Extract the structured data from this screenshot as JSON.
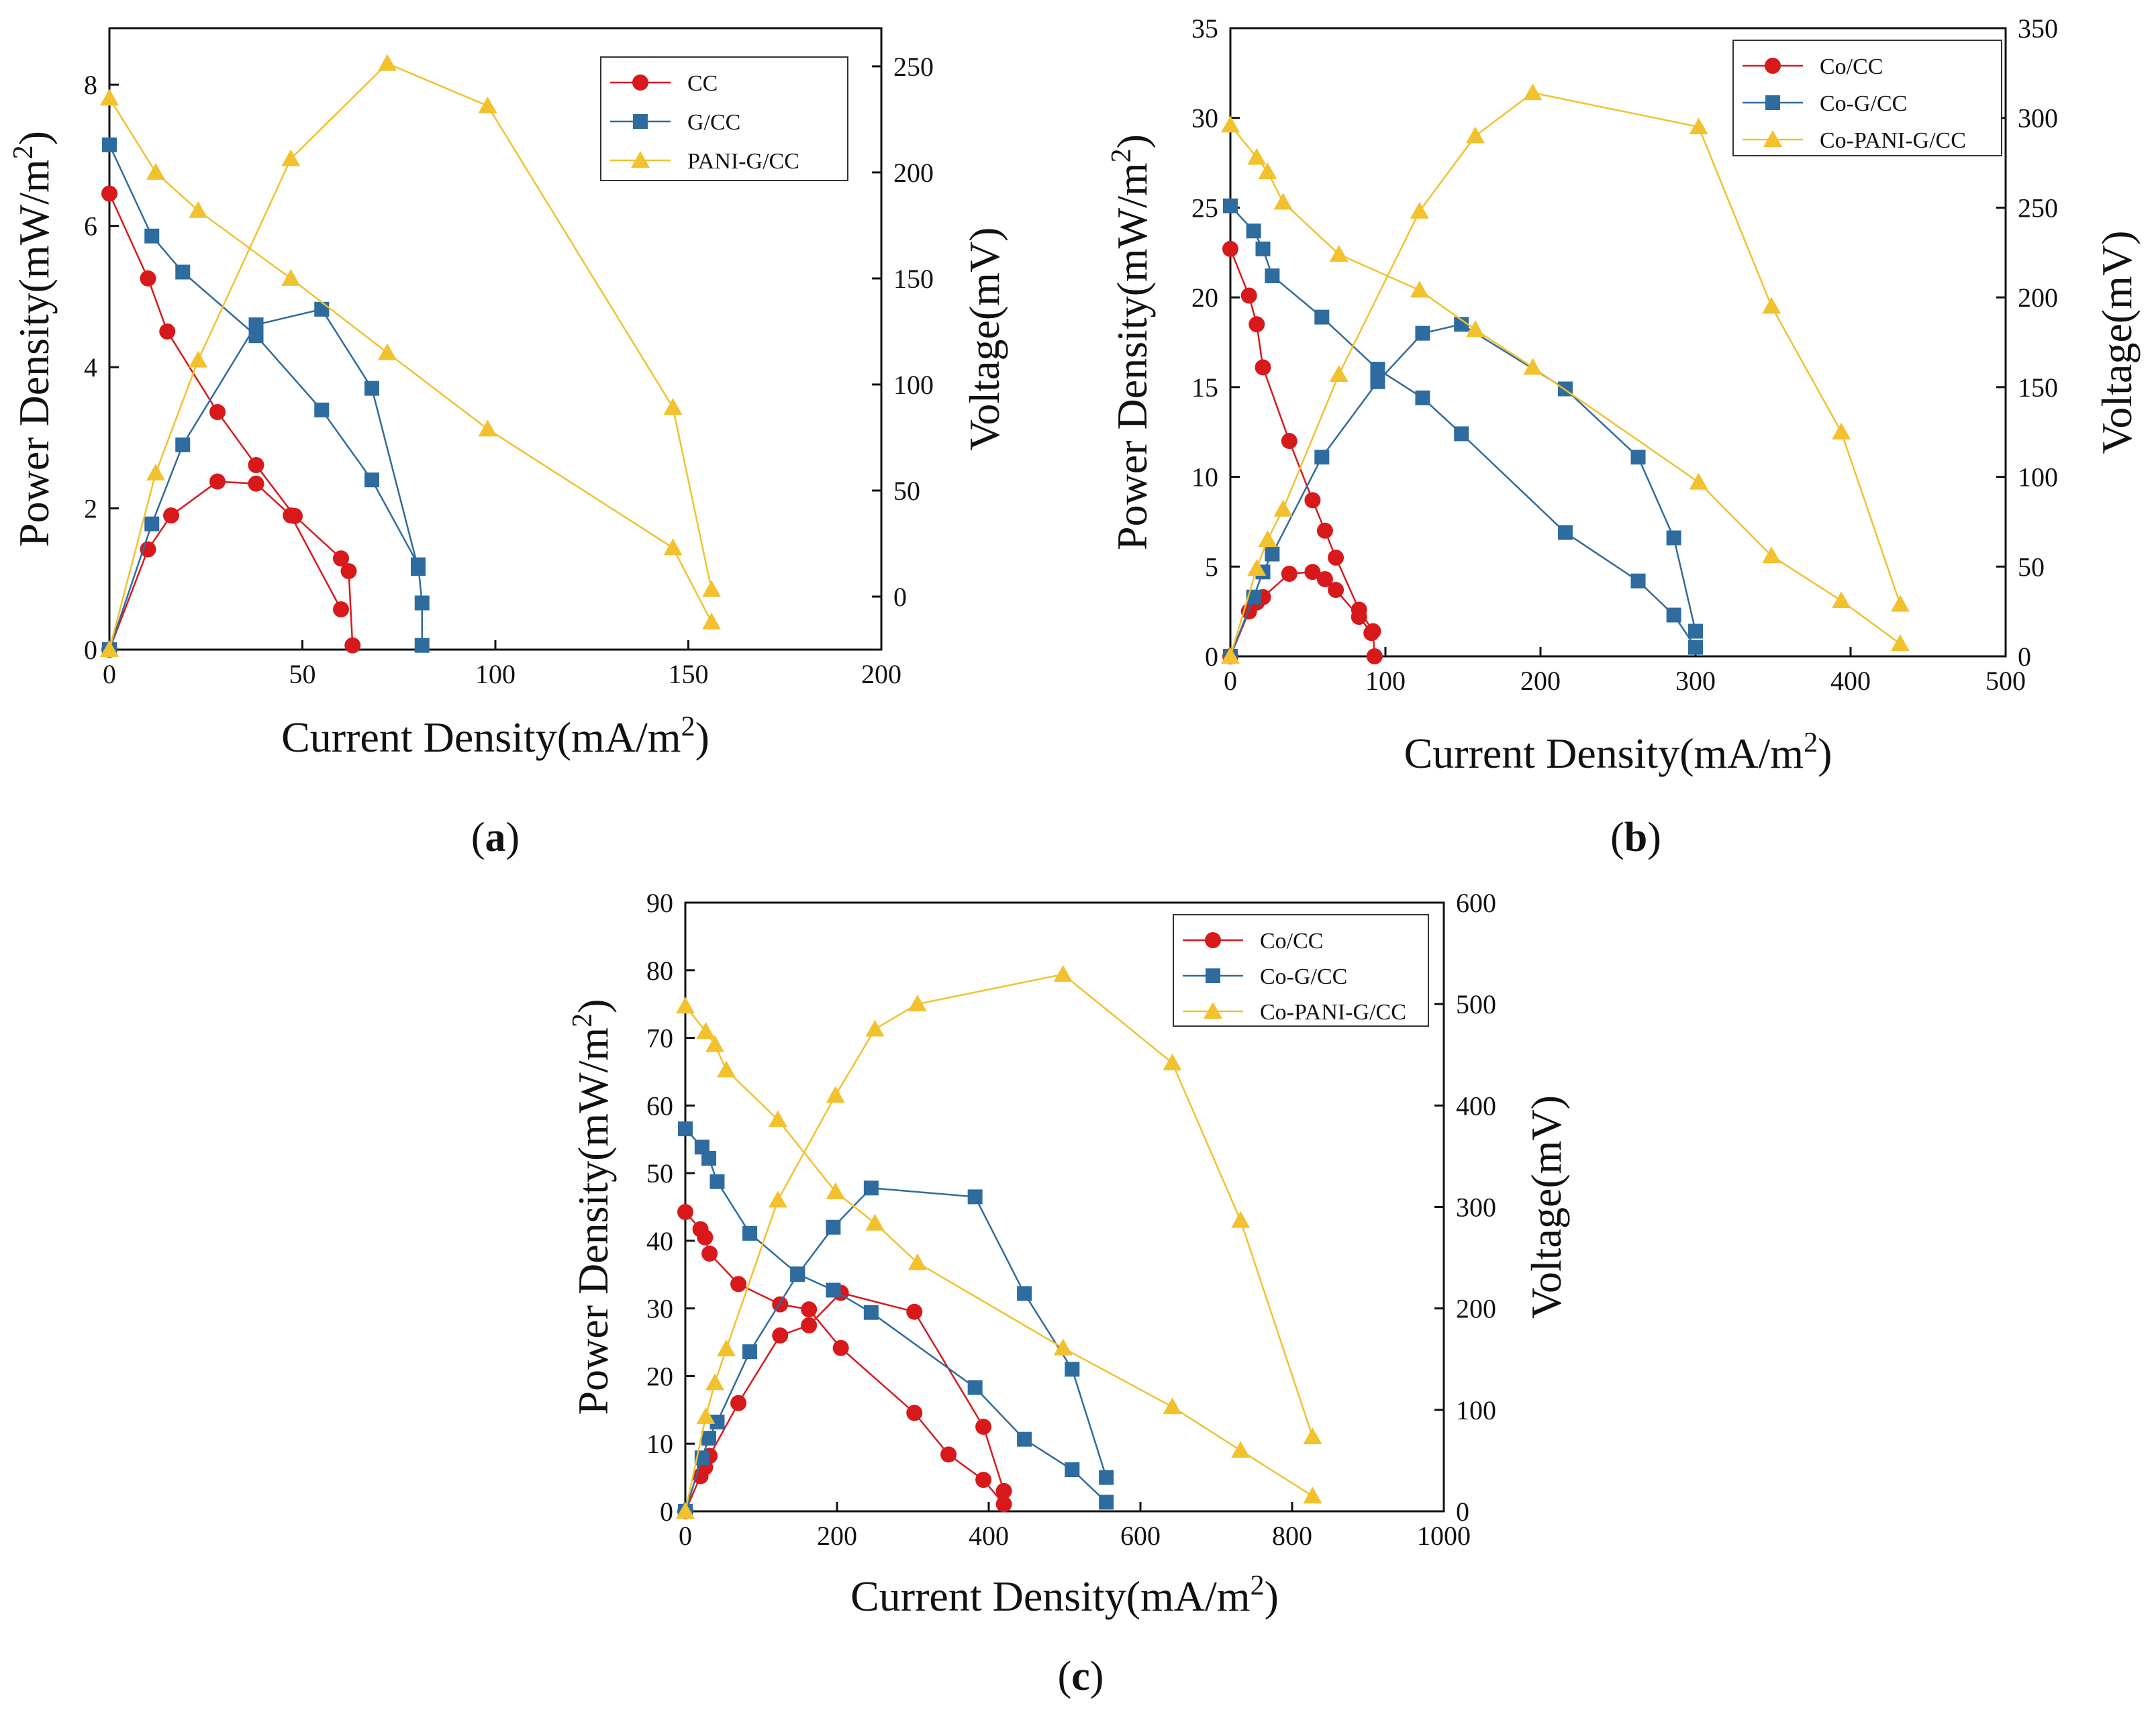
{
  "chart_data": [
    {
      "panel_label": [
        "(",
        "a",
        ")"
      ],
      "type": "line",
      "xlabel": "Current Density(mA/m2)",
      "ylabel": "Power Density(mW/m2)",
      "y2label": "Voltage(mV)",
      "xlim": [
        0,
        200
      ],
      "ylim": [
        0,
        8.8
      ],
      "y2lim": [
        -25,
        268
      ],
      "xticks": [
        0,
        50,
        100,
        150,
        200
      ],
      "yticks": [
        0,
        2,
        4,
        6,
        8
      ],
      "y2ticks": [
        0,
        50,
        100,
        150,
        200,
        250
      ],
      "legend_position": "top-right",
      "series": [
        {
          "name": "CC",
          "color": "#d7191c",
          "marker": "circle",
          "kind": "power",
          "points": [
            [
              0,
              0
            ],
            [
              10,
              1.42
            ],
            [
              16,
              1.9
            ],
            [
              28,
              2.38
            ],
            [
              38,
              2.35
            ],
            [
              47,
              1.9
            ],
            [
              60,
              0.57
            ]
          ]
        },
        {
          "name": "CC",
          "color": "#d7191c",
          "marker": "circle",
          "kind": "voltage",
          "points": [
            [
              0,
              190
            ],
            [
              10,
              150
            ],
            [
              15,
              125
            ],
            [
              28,
              87
            ],
            [
              38,
              62
            ],
            [
              48,
              38
            ],
            [
              60,
              18
            ],
            [
              62,
              12
            ],
            [
              63,
              -23
            ]
          ]
        },
        {
          "name": "G/CC",
          "color": "#2e6b9e",
          "marker": "square",
          "kind": "power",
          "points": [
            [
              0,
              0
            ],
            [
              11,
              1.78
            ],
            [
              19,
              2.9
            ],
            [
              38,
              4.6
            ],
            [
              55,
              4.82
            ],
            [
              68,
              3.7
            ],
            [
              80,
              1.15
            ]
          ]
        },
        {
          "name": "G/CC",
          "color": "#2e6b9e",
          "marker": "square",
          "kind": "voltage",
          "points": [
            [
              0,
              213
            ],
            [
              11,
              170
            ],
            [
              19,
              153
            ],
            [
              38,
              123
            ],
            [
              55,
              88
            ],
            [
              68,
              55
            ],
            [
              80,
              15
            ],
            [
              81,
              -3
            ],
            [
              81,
              -23
            ]
          ]
        },
        {
          "name": "PANI-G/CC",
          "color": "#f2c12e",
          "marker": "triangle",
          "kind": "power",
          "points": [
            [
              0,
              0
            ],
            [
              12,
              2.5
            ],
            [
              23,
              4.1
            ],
            [
              47,
              6.95
            ],
            [
              72,
              8.3
            ],
            [
              98,
              7.7
            ],
            [
              146,
              3.43
            ],
            [
              156,
              0.85
            ]
          ]
        },
        {
          "name": "PANI-G/CC",
          "color": "#f2c12e",
          "marker": "triangle",
          "kind": "voltage",
          "points": [
            [
              0,
              235
            ],
            [
              12,
              200
            ],
            [
              23,
              182
            ],
            [
              47,
              150
            ],
            [
              72,
              115
            ],
            [
              98,
              79
            ],
            [
              146,
              23
            ],
            [
              156,
              -12
            ]
          ]
        }
      ]
    },
    {
      "panel_label": [
        "(",
        "b",
        ")"
      ],
      "type": "line",
      "xlabel": "Current Density(mA/m2)",
      "ylabel": "Power Density(mW/m2)",
      "y2label": "Voltage(mV)",
      "xlim": [
        0,
        500
      ],
      "ylim": [
        0,
        35
      ],
      "y2lim": [
        0,
        350
      ],
      "xticks": [
        0,
        100,
        200,
        300,
        400,
        500
      ],
      "yticks": [
        0,
        5,
        10,
        15,
        20,
        25,
        30,
        35
      ],
      "y2ticks": [
        0,
        50,
        100,
        150,
        200,
        250,
        300,
        350
      ],
      "legend_position": "top-right",
      "series": [
        {
          "name": "Co/CC",
          "color": "#d7191c",
          "marker": "circle",
          "kind": "power",
          "points": [
            [
              0,
              0
            ],
            [
              12,
              2.5
            ],
            [
              17,
              3
            ],
            [
              21,
              3.3
            ],
            [
              38,
              4.6
            ],
            [
              53,
              4.7
            ],
            [
              61,
              4.3
            ],
            [
              68,
              3.7
            ],
            [
              83,
              2.2
            ],
            [
              91,
              1.3
            ]
          ]
        },
        {
          "name": "Co/CC",
          "color": "#d7191c",
          "marker": "circle",
          "kind": "voltage",
          "points": [
            [
              0,
              227
            ],
            [
              12,
              201
            ],
            [
              17,
              185
            ],
            [
              21,
              161
            ],
            [
              38,
              120
            ],
            [
              53,
              87
            ],
            [
              61,
              70
            ],
            [
              68,
              55
            ],
            [
              83,
              26
            ],
            [
              92,
              14
            ],
            [
              93,
              0
            ]
          ]
        },
        {
          "name": "Co-G/CC",
          "color": "#2e6b9e",
          "marker": "square",
          "kind": "power",
          "points": [
            [
              0,
              0
            ],
            [
              15,
              3.3
            ],
            [
              21,
              4.7
            ],
            [
              27,
              5.7
            ],
            [
              59,
              11.1
            ],
            [
              95,
              15.3
            ],
            [
              124,
              18
            ],
            [
              149,
              18.5
            ],
            [
              216,
              14.9
            ],
            [
              263,
              11.1
            ],
            [
              286,
              6.6
            ],
            [
              300,
              1.4
            ]
          ]
        },
        {
          "name": "Co-G/CC",
          "color": "#2e6b9e",
          "marker": "square",
          "kind": "voltage",
          "points": [
            [
              0,
              251
            ],
            [
              15,
              237
            ],
            [
              21,
              227
            ],
            [
              27,
              212
            ],
            [
              59,
              189
            ],
            [
              95,
              160
            ],
            [
              124,
              144
            ],
            [
              149,
              124
            ],
            [
              216,
              69
            ],
            [
              263,
              42
            ],
            [
              286,
              23
            ],
            [
              300,
              5
            ]
          ]
        },
        {
          "name": "Co-PANI-G/CC",
          "color": "#f2c12e",
          "marker": "triangle",
          "kind": "power",
          "points": [
            [
              0,
              0
            ],
            [
              17,
              4.9
            ],
            [
              24,
              6.5
            ],
            [
              34,
              8.2
            ],
            [
              70,
              15.7
            ],
            [
              122,
              24.8
            ],
            [
              158,
              29
            ],
            [
              195,
              31.4
            ],
            [
              302,
              29.5
            ],
            [
              349,
              19.5
            ],
            [
              394,
              12.5
            ],
            [
              432,
              2.9
            ]
          ]
        },
        {
          "name": "Co-PANI-G/CC",
          "color": "#f2c12e",
          "marker": "triangle",
          "kind": "voltage",
          "points": [
            [
              0,
              296
            ],
            [
              17,
              278
            ],
            [
              24,
              270
            ],
            [
              34,
              253
            ],
            [
              70,
              224
            ],
            [
              122,
              204
            ],
            [
              158,
              182
            ],
            [
              195,
              161
            ],
            [
              302,
              97
            ],
            [
              349,
              56
            ],
            [
              394,
              31
            ],
            [
              432,
              7
            ]
          ]
        }
      ]
    },
    {
      "panel_label": [
        "(",
        "c",
        ")"
      ],
      "type": "line",
      "xlabel": "Current Density(mA/m2)",
      "ylabel": "Power Density(mW/m2)",
      "y2label": "Voltage(mV)",
      "xlim": [
        0,
        1000
      ],
      "ylim": [
        0,
        90
      ],
      "y2lim": [
        0,
        600
      ],
      "xticks": [
        0,
        200,
        400,
        600,
        800,
        1000
      ],
      "yticks": [
        0,
        10,
        20,
        30,
        40,
        50,
        60,
        70,
        80,
        90
      ],
      "y2ticks": [
        0,
        100,
        200,
        300,
        400,
        500,
        600
      ],
      "legend_position": "top-right",
      "series": [
        {
          "name": "Co/CC",
          "color": "#d7191c",
          "marker": "circle",
          "kind": "power",
          "points": [
            [
              0,
              0
            ],
            [
              20,
              5.2
            ],
            [
              26,
              6.5
            ],
            [
              32,
              8.2
            ],
            [
              70,
              16
            ],
            [
              125,
              26
            ],
            [
              163,
              27.5
            ],
            [
              205,
              32.3
            ],
            [
              302,
              29.5
            ],
            [
              393,
              12.5
            ],
            [
              420,
              3
            ]
          ]
        },
        {
          "name": "Co/CC",
          "color": "#d7191c",
          "marker": "circle",
          "kind": "voltage",
          "points": [
            [
              0,
              295
            ],
            [
              20,
              278
            ],
            [
              26,
              270
            ],
            [
              32,
              254
            ],
            [
              70,
              224
            ],
            [
              125,
              204
            ],
            [
              163,
              199
            ],
            [
              205,
              161
            ],
            [
              302,
              97
            ],
            [
              347,
              56
            ],
            [
              393,
              31
            ],
            [
              420,
              7
            ]
          ]
        },
        {
          "name": "Co-G/CC",
          "color": "#2e6b9e",
          "marker": "square",
          "kind": "power",
          "points": [
            [
              0,
              0
            ],
            [
              22,
              7.9
            ],
            [
              31,
              10.8
            ],
            [
              42,
              13.2
            ],
            [
              85,
              23.6
            ],
            [
              148,
              35
            ],
            [
              195,
              42
            ],
            [
              245,
              47.8
            ],
            [
              382,
              46.5
            ],
            [
              447,
              32.2
            ],
            [
              510,
              21
            ],
            [
              555,
              5
            ]
          ]
        },
        {
          "name": "Co-G/CC",
          "color": "#2e6b9e",
          "marker": "square",
          "kind": "voltage",
          "points": [
            [
              0,
              377
            ],
            [
              22,
              359
            ],
            [
              31,
              348
            ],
            [
              42,
              325
            ],
            [
              85,
              274
            ],
            [
              148,
              234
            ],
            [
              195,
              218
            ],
            [
              245,
              196
            ],
            [
              382,
              122
            ],
            [
              447,
              71
            ],
            [
              510,
              41
            ],
            [
              555,
              9
            ]
          ]
        },
        {
          "name": "Co-PANI-G/CC",
          "color": "#f2c12e",
          "marker": "triangle",
          "kind": "power",
          "points": [
            [
              0,
              0
            ],
            [
              27,
              14
            ],
            [
              39,
              19
            ],
            [
              54,
              24
            ],
            [
              122,
              46
            ],
            [
              198,
              61.5
            ],
            [
              250,
              71.3
            ],
            [
              306,
              75
            ],
            [
              498,
              79.4
            ],
            [
              642,
              66.3
            ],
            [
              732,
              43
            ],
            [
              827,
              11
            ]
          ]
        },
        {
          "name": "Co-PANI-G/CC",
          "color": "#f2c12e",
          "marker": "triangle",
          "kind": "voltage",
          "points": [
            [
              0,
              498
            ],
            [
              27,
              473
            ],
            [
              39,
              460
            ],
            [
              54,
              435
            ],
            [
              122,
              386
            ],
            [
              198,
              315
            ],
            [
              250,
              284
            ],
            [
              306,
              245
            ],
            [
              498,
              161
            ],
            [
              642,
              103
            ],
            [
              732,
              60
            ],
            [
              827,
              15
            ]
          ]
        }
      ]
    }
  ]
}
